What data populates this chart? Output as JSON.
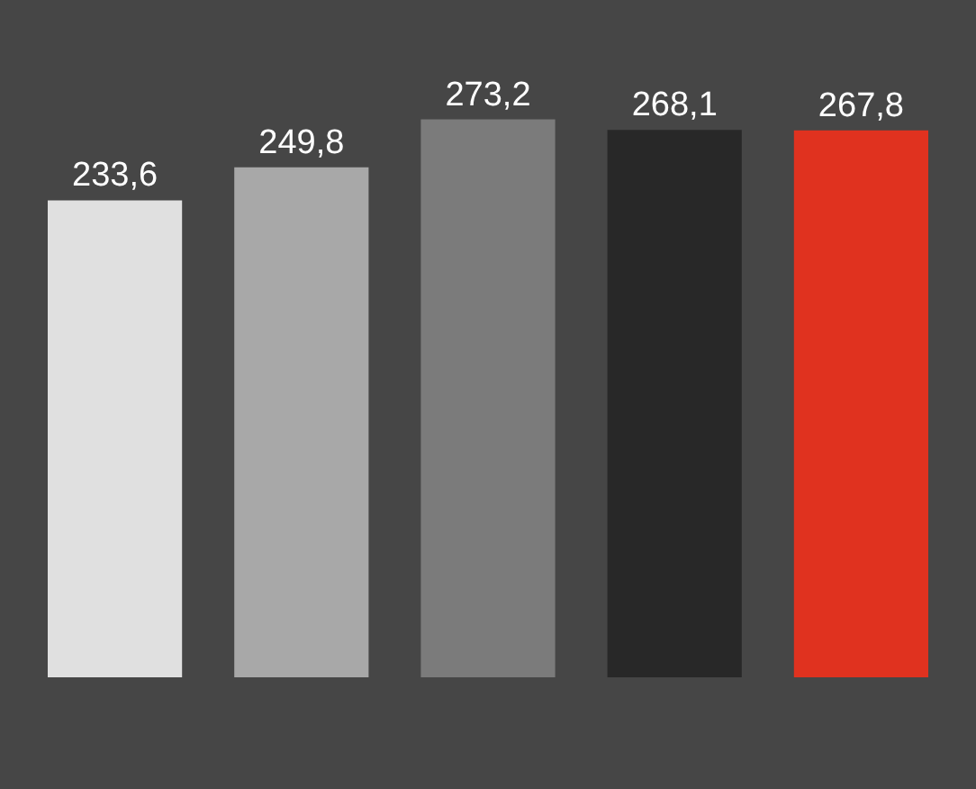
{
  "chart_data": {
    "type": "bar",
    "categories": [
      null,
      null,
      null,
      null,
      null
    ],
    "values": [
      233.6,
      249.8,
      273.2,
      268.1,
      267.8
    ],
    "colors": [
      "#e0e0e0",
      "#a8a8a8",
      "#7b7b7b",
      "#282828",
      "#e0321f"
    ],
    "value_labels": [
      "233,6",
      "249,8",
      "273,2",
      "268,1",
      "267,8"
    ]
  }
}
